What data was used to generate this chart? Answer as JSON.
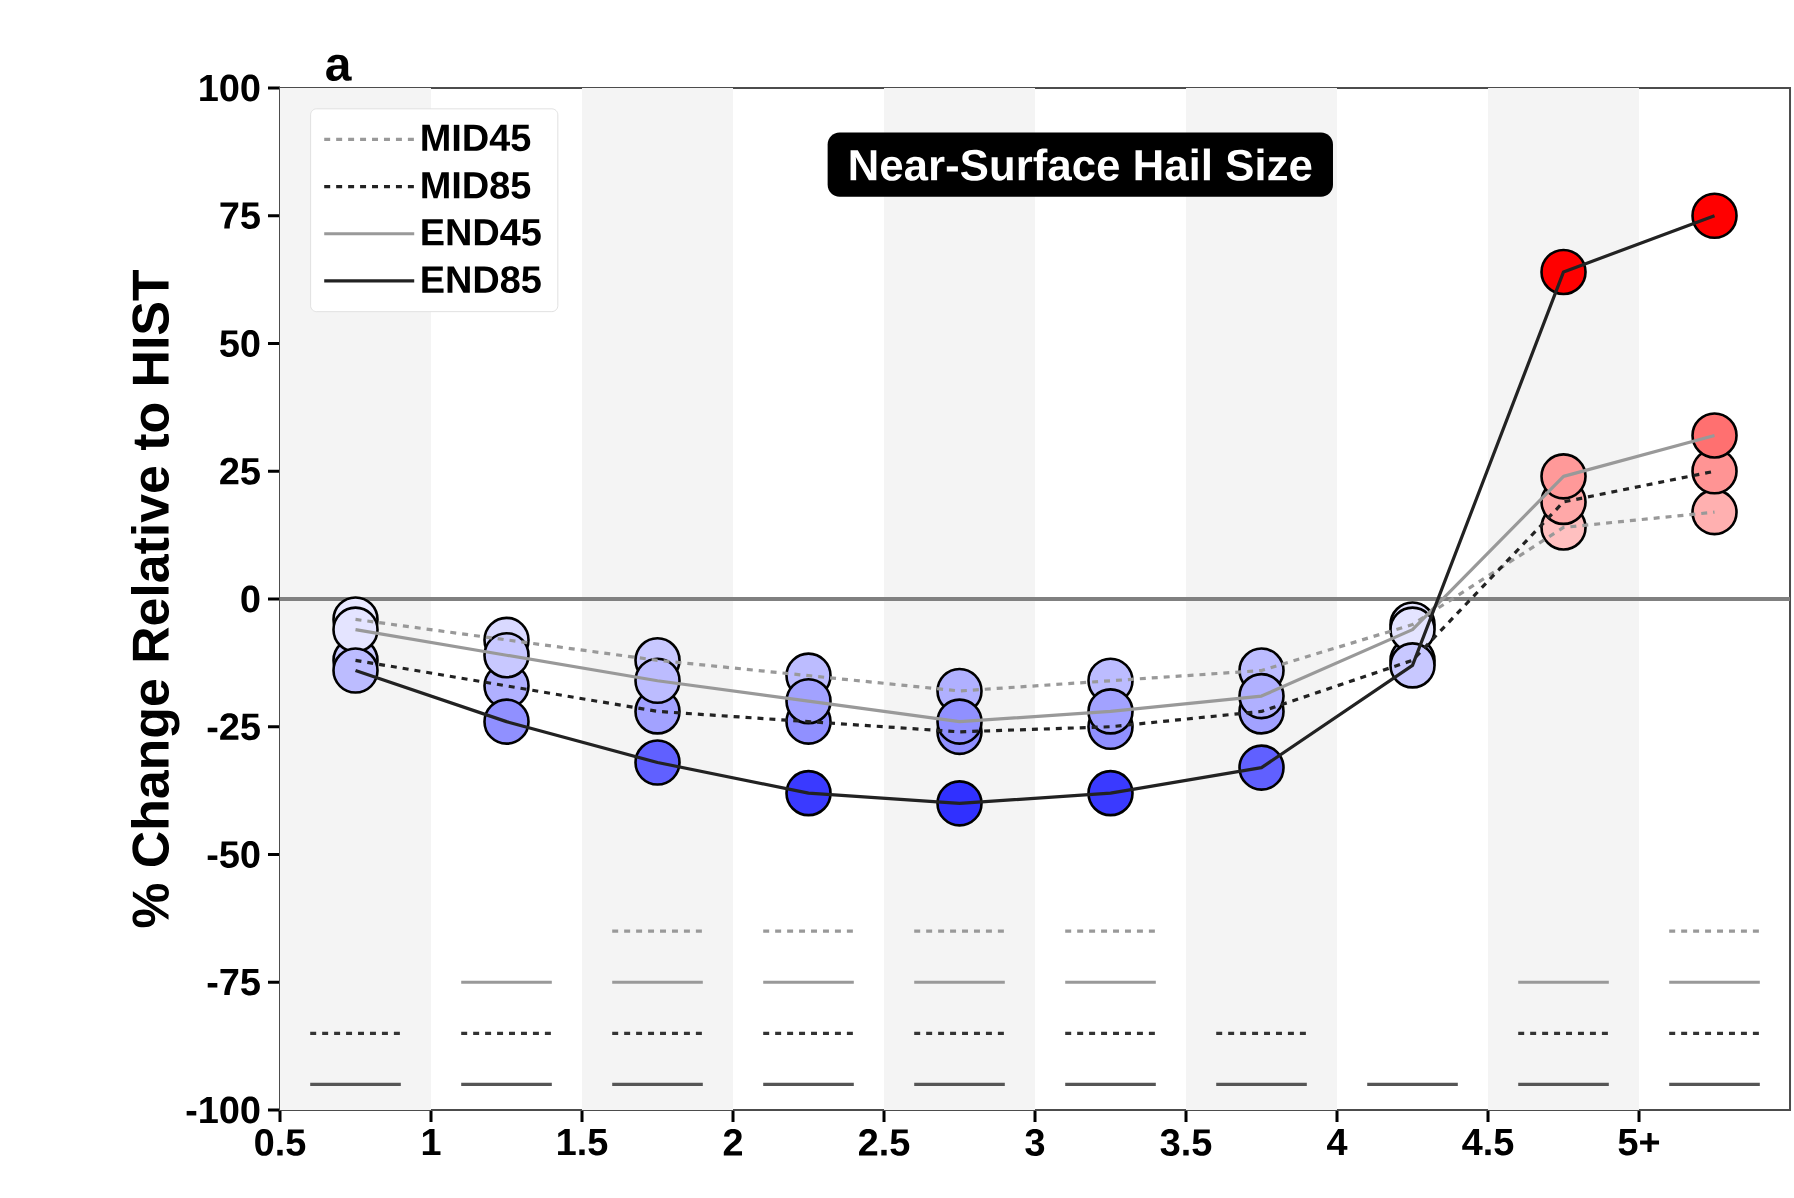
{
  "chart_data": {
    "type": "line",
    "title": "Near-Surface Hail Size",
    "ylabel": "% Change Relative to HIST",
    "annotations": [
      "a"
    ],
    "x": [
      0.75,
      1.25,
      1.75,
      2.25,
      2.75,
      3.25,
      3.75,
      4.25,
      4.75,
      5.25
    ],
    "xlim": [
      0.5,
      5.5
    ],
    "xticks": [
      0.5,
      1,
      1.5,
      2,
      2.5,
      3,
      3.5,
      4,
      4.5,
      {
        "value": 5,
        "label": "5+"
      }
    ],
    "ylim": [
      -100,
      100
    ],
    "yticks": [
      -100,
      -75,
      -50,
      -25,
      0,
      25,
      50,
      75,
      100
    ],
    "legend": "top left",
    "ref_lines": [
      {
        "axis": "y",
        "value": 0,
        "color": "#808080"
      }
    ],
    "bands": [
      {
        "axis": "x",
        "from": 0.5,
        "to": 1,
        "color": "#f4f4f4"
      },
      {
        "axis": "x",
        "from": 1.5,
        "to": 2,
        "color": "#f4f4f4"
      },
      {
        "axis": "x",
        "from": 2.5,
        "to": 3,
        "color": "#f4f4f4"
      },
      {
        "axis": "x",
        "from": 3.5,
        "to": 4,
        "color": "#f4f4f4"
      },
      {
        "axis": "x",
        "from": 4.5,
        "to": 5,
        "color": "#f4f4f4"
      }
    ],
    "series": [
      {
        "name": "MID45",
        "color": "#999999",
        "line_style": "dashed",
        "marker": "circle",
        "values": [
          -4,
          -8,
          -12,
          -15,
          -18,
          -16,
          -14,
          -5,
          14,
          17
        ],
        "colors": [
          "#e8e8ff",
          "#d9d9ff",
          "#c8c8ff",
          "#bcbcff",
          "#b0b0ff",
          "#bcbcff",
          "#bcbcff",
          "#e4e4ff",
          "#ffc0c0",
          "#ffb0b0"
        ]
      },
      {
        "name": "MID85",
        "color": "#222222",
        "line_style": "dashed",
        "marker": "circle",
        "values": [
          -12,
          -17,
          -22,
          -24,
          -26,
          -25,
          -22,
          -12,
          19,
          25
        ],
        "colors": [
          "#c8c8ff",
          "#b0b0ff",
          "#a2a2ff",
          "#9090ff",
          "#9090ff",
          "#9090ff",
          "#a2a2ff",
          "#c8c8ff",
          "#ffa8a8",
          "#ff9494"
        ]
      },
      {
        "name": "END45",
        "color": "#999999",
        "line_style": "solid",
        "marker": "circle",
        "values": [
          -6,
          -11,
          -16,
          -20,
          -24,
          -22,
          -19,
          -6,
          24,
          32
        ],
        "colors": [
          "#e4e4ff",
          "#c8c8ff",
          "#bcbcff",
          "#a2a2ff",
          "#9090ff",
          "#a2a2ff",
          "#b0b0ff",
          "#e4e4ff",
          "#ff9999",
          "#ff7070"
        ]
      },
      {
        "name": "END85",
        "color": "#222222",
        "line_style": "solid",
        "marker": "circle",
        "values": [
          -14,
          -24,
          -32,
          -38,
          -40,
          -38,
          -33,
          -13,
          64,
          75
        ],
        "colors": [
          "#bcbcff",
          "#9090ff",
          "#6060ff",
          "#3a3aff",
          "#3030ff",
          "#3a3aff",
          "#6060ff",
          "#c8c8ff",
          "#ff0000",
          "#ff0000"
        ]
      },
      {
        "color": "#999999",
        "line_style": "dashed",
        "marker": "none",
        "x": [
          1.6,
          1.9,
          2,
          2.1,
          2.4,
          2.5,
          2.6,
          2.9,
          3,
          3.1,
          3.4,
          3.5,
          5.1,
          5.4
        ],
        "values": [
          -65,
          -65,
          null,
          -65,
          -65,
          null,
          -65,
          -65,
          null,
          -65,
          -65,
          null,
          -65,
          -65
        ]
      },
      {
        "color": "#999999",
        "line_style": "solid",
        "marker": "none",
        "x": [
          1.1,
          1.4,
          1.5,
          1.6,
          1.9,
          2,
          2.1,
          2.4,
          2.5,
          2.6,
          2.9,
          3,
          3.1,
          3.4,
          3.5,
          4.6,
          4.9,
          5,
          5.1,
          5.4
        ],
        "values": [
          -75,
          -75,
          null,
          -75,
          -75,
          null,
          -75,
          -75,
          null,
          -75,
          -75,
          null,
          -75,
          -75,
          null,
          -75,
          -75,
          null,
          -75,
          -75
        ]
      },
      {
        "color": "#333333",
        "line_style": "dashed",
        "marker": "none",
        "x": [
          0.6,
          0.9,
          1,
          1.1,
          1.4,
          1.5,
          1.6,
          1.9,
          2,
          2.1,
          2.4,
          2.5,
          2.6,
          2.9,
          3,
          3.1,
          3.4,
          3.5,
          3.6,
          3.9,
          4,
          4.6,
          4.9,
          5,
          5.1,
          5.4
        ],
        "values": [
          -85,
          -85,
          null,
          -85,
          -85,
          null,
          -85,
          -85,
          null,
          -85,
          -85,
          null,
          -85,
          -85,
          null,
          -85,
          -85,
          null,
          -85,
          -85,
          null,
          -85,
          -85,
          null,
          -85,
          -85
        ]
      },
      {
        "color": "#555555",
        "line_style": "solid",
        "marker": "none",
        "x": [
          0.6,
          0.9,
          1,
          1.1,
          1.4,
          1.5,
          1.6,
          1.9,
          2,
          2.1,
          2.4,
          2.5,
          2.6,
          2.9,
          3,
          3.1,
          3.4,
          3.5,
          3.6,
          3.9,
          4,
          4.1,
          4.4,
          4.5,
          4.6,
          4.9,
          5,
          5.1,
          5.4
        ],
        "values": [
          -95,
          -95,
          null,
          -95,
          -95,
          null,
          -95,
          -95,
          null,
          -95,
          -95,
          null,
          -95,
          -95,
          null,
          -95,
          -95,
          null,
          -95,
          -95,
          null,
          -95,
          -95,
          null,
          -95,
          -95,
          null,
          -95,
          -95
        ]
      }
    ]
  }
}
